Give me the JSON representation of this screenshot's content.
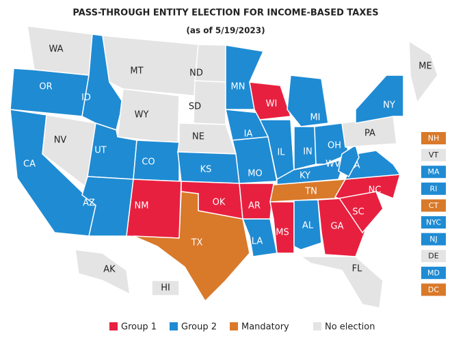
{
  "title": "PASS-THROUGH ENTITY ELECTION FOR INCOME-BASED TAXES",
  "subtitle": "(as of 5/19/2023)",
  "legend": [
    {
      "name": "Group 1",
      "color": "#e8203f"
    },
    {
      "name": "Group 2",
      "color": "#1f8bd3"
    },
    {
      "name": "Mandatory",
      "color": "#d9792a"
    },
    {
      "name": "No election",
      "color": "#e4e4e4"
    }
  ],
  "states": [
    {
      "label": "WA",
      "color": "#e4e4e4"
    },
    {
      "label": "OR",
      "color": "#1f8bd3"
    },
    {
      "label": "CA",
      "color": "#1f8bd3"
    },
    {
      "label": "NV",
      "color": "#e4e4e4"
    },
    {
      "label": "ID",
      "color": "#1f8bd3"
    },
    {
      "label": "MT",
      "color": "#e4e4e4"
    },
    {
      "label": "WY",
      "color": "#e4e4e4"
    },
    {
      "label": "UT",
      "color": "#1f8bd3"
    },
    {
      "label": "AZ",
      "color": "#1f8bd3"
    },
    {
      "label": "CO",
      "color": "#1f8bd3"
    },
    {
      "label": "NM",
      "color": "#e8203f"
    },
    {
      "label": "ND",
      "color": "#e4e4e4"
    },
    {
      "label": "SD",
      "color": "#e4e4e4"
    },
    {
      "label": "NE",
      "color": "#e4e4e4"
    },
    {
      "label": "KS",
      "color": "#1f8bd3"
    },
    {
      "label": "OK",
      "color": "#e8203f"
    },
    {
      "label": "TX",
      "color": "#d9792a"
    },
    {
      "label": "MN",
      "color": "#1f8bd3"
    },
    {
      "label": "IA",
      "color": "#1f8bd3"
    },
    {
      "label": "MO",
      "color": "#1f8bd3"
    },
    {
      "label": "AR",
      "color": "#e8203f"
    },
    {
      "label": "LA",
      "color": "#1f8bd3"
    },
    {
      "label": "WI",
      "color": "#e8203f"
    },
    {
      "label": "IL",
      "color": "#1f8bd3"
    },
    {
      "label": "MI",
      "color": "#1f8bd3"
    },
    {
      "label": "IN",
      "color": "#1f8bd3"
    },
    {
      "label": "OH",
      "color": "#1f8bd3"
    },
    {
      "label": "KY",
      "color": "#1f8bd3"
    },
    {
      "label": "TN",
      "color": "#d9792a"
    },
    {
      "label": "MS",
      "color": "#e8203f"
    },
    {
      "label": "AL",
      "color": "#1f8bd3"
    },
    {
      "label": "GA",
      "color": "#e8203f"
    },
    {
      "label": "FL",
      "color": "#e4e4e4"
    },
    {
      "label": "SC",
      "color": "#e8203f"
    },
    {
      "label": "NC",
      "color": "#e8203f"
    },
    {
      "label": "VA",
      "color": "#1f8bd3"
    },
    {
      "label": "WV",
      "color": "#1f8bd3"
    },
    {
      "label": "PA",
      "color": "#e4e4e4"
    },
    {
      "label": "NY",
      "color": "#1f8bd3"
    },
    {
      "label": "ME",
      "color": "#e4e4e4"
    },
    {
      "label": "AK",
      "color": "#e4e4e4"
    },
    {
      "label": "HI",
      "color": "#e4e4e4"
    }
  ],
  "small_states": [
    {
      "label": "NH",
      "color": "#d9792a"
    },
    {
      "label": "VT",
      "color": "#e4e4e4"
    },
    {
      "label": "MA",
      "color": "#1f8bd3"
    },
    {
      "label": "RI",
      "color": "#1f8bd3"
    },
    {
      "label": "CT",
      "color": "#d9792a"
    },
    {
      "label": "NYC",
      "color": "#1f8bd3"
    },
    {
      "label": "NJ",
      "color": "#1f8bd3"
    },
    {
      "label": "DE",
      "color": "#e4e4e4"
    },
    {
      "label": "MD",
      "color": "#1f8bd3"
    },
    {
      "label": "DC",
      "color": "#d9792a"
    }
  ]
}
